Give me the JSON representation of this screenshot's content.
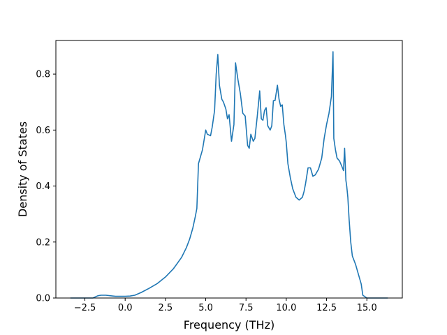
{
  "chart_data": {
    "type": "line",
    "xlabel": "Frequency (THz)",
    "ylabel": "Density of States",
    "xlim": [
      -4.3,
      17.2
    ],
    "ylim": [
      0.0,
      0.92
    ],
    "x_ticks": [
      -2.5,
      0.0,
      2.5,
      5.0,
      7.5,
      10.0,
      12.5,
      15.0
    ],
    "x_tick_labels": [
      "−2.5",
      "0.0",
      "2.5",
      "5.0",
      "7.5",
      "10.0",
      "12.5",
      "15.0"
    ],
    "y_ticks": [
      0.0,
      0.2,
      0.4,
      0.6,
      0.8
    ],
    "y_tick_labels": [
      "0.0",
      "0.2",
      "0.4",
      "0.6",
      "0.8"
    ],
    "grid": false,
    "legend": "none",
    "line_color": "#1f77b4",
    "series": [
      {
        "x": [
          -3.4,
          -2.5,
          -2.0,
          -1.7,
          -1.5,
          -1.2,
          -0.9,
          -0.6,
          -0.3,
          0.0,
          0.3,
          0.6,
          1.0,
          1.5,
          2.0,
          2.5,
          3.0,
          3.5,
          3.8,
          4.0,
          4.2,
          4.35,
          4.45,
          4.5,
          4.55,
          4.6,
          4.8,
          5.0,
          5.1,
          5.3,
          5.4,
          5.55,
          5.65,
          5.75,
          5.85,
          6.0,
          6.1,
          6.25,
          6.35,
          6.45,
          6.6,
          6.75,
          6.85,
          7.0,
          7.15,
          7.3,
          7.45,
          7.6,
          7.7,
          7.8,
          7.95,
          8.05,
          8.2,
          8.35,
          8.45,
          8.55,
          8.65,
          8.75,
          8.85,
          9.0,
          9.1,
          9.2,
          9.3,
          9.45,
          9.55,
          9.65,
          9.75,
          9.85,
          9.95,
          10.0,
          10.1,
          10.25,
          10.4,
          10.6,
          10.8,
          11.0,
          11.1,
          11.2,
          11.35,
          11.5,
          11.65,
          11.8,
          12.0,
          12.2,
          12.35,
          12.5,
          12.65,
          12.8,
          12.9,
          12.95,
          13.05,
          13.15,
          13.3,
          13.45,
          13.55,
          13.62,
          13.7,
          13.75,
          13.82,
          13.9,
          14.0,
          14.1,
          14.3,
          14.5,
          14.65,
          14.75,
          15.0,
          16.3
        ],
        "y": [
          0.0,
          0.0,
          0.0,
          0.008,
          0.01,
          0.01,
          0.008,
          0.006,
          0.006,
          0.006,
          0.007,
          0.01,
          0.02,
          0.035,
          0.052,
          0.075,
          0.105,
          0.145,
          0.18,
          0.21,
          0.25,
          0.29,
          0.32,
          0.4,
          0.48,
          0.49,
          0.53,
          0.6,
          0.585,
          0.58,
          0.61,
          0.67,
          0.8,
          0.87,
          0.76,
          0.71,
          0.7,
          0.675,
          0.64,
          0.655,
          0.56,
          0.62,
          0.84,
          0.78,
          0.73,
          0.66,
          0.65,
          0.545,
          0.535,
          0.585,
          0.56,
          0.57,
          0.65,
          0.74,
          0.64,
          0.635,
          0.67,
          0.68,
          0.615,
          0.6,
          0.615,
          0.705,
          0.705,
          0.76,
          0.71,
          0.685,
          0.69,
          0.62,
          0.58,
          0.555,
          0.48,
          0.43,
          0.39,
          0.36,
          0.35,
          0.36,
          0.38,
          0.41,
          0.465,
          0.465,
          0.435,
          0.44,
          0.46,
          0.5,
          0.57,
          0.62,
          0.66,
          0.72,
          0.88,
          0.57,
          0.53,
          0.5,
          0.49,
          0.47,
          0.455,
          0.535,
          0.42,
          0.4,
          0.36,
          0.28,
          0.2,
          0.15,
          0.12,
          0.08,
          0.05,
          0.01,
          0.0,
          0.0
        ]
      }
    ]
  }
}
